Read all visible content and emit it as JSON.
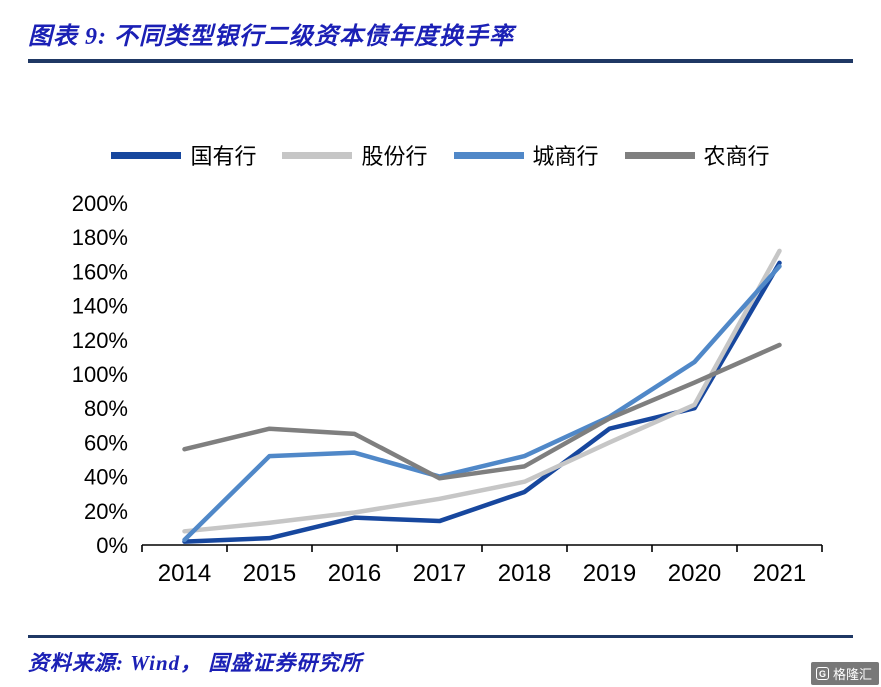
{
  "header": {
    "title": "图表 9:  不同类型银行二级资本债年度换手率"
  },
  "footer": {
    "source": "资料来源: Wind， 国盛证券研究所",
    "watermark_text": "格隆汇",
    "watermark_icon_letter": "G"
  },
  "colors": {
    "title_blue": "#1B20B5",
    "rule_navy": "#1F3864",
    "axis_black": "#000000"
  },
  "chart_data": {
    "type": "line",
    "title": "不同类型银行二级资本债年度换手率",
    "categories": [
      "2014",
      "2015",
      "2016",
      "2017",
      "2018",
      "2019",
      "2020",
      "2021"
    ],
    "series": [
      {
        "name": "国有行",
        "color": "#17479E",
        "values": [
          2,
          4,
          16,
          14,
          31,
          68,
          80,
          165
        ]
      },
      {
        "name": "股份行",
        "color": "#C6C6C6",
        "values": [
          8,
          13,
          19,
          27,
          37,
          60,
          82,
          172
        ]
      },
      {
        "name": "城商行",
        "color": "#5088C8",
        "values": [
          3,
          52,
          54,
          40,
          52,
          75,
          107,
          163
        ]
      },
      {
        "name": "农商行",
        "color": "#7F7F7F",
        "values": [
          56,
          68,
          65,
          39,
          46,
          74,
          95,
          117
        ]
      }
    ],
    "ylim": [
      0,
      200
    ],
    "ytick_step": 20,
    "ytick_suffix": "%",
    "xlabel": "",
    "ylabel": "",
    "grid": false,
    "legend_position": "top"
  }
}
